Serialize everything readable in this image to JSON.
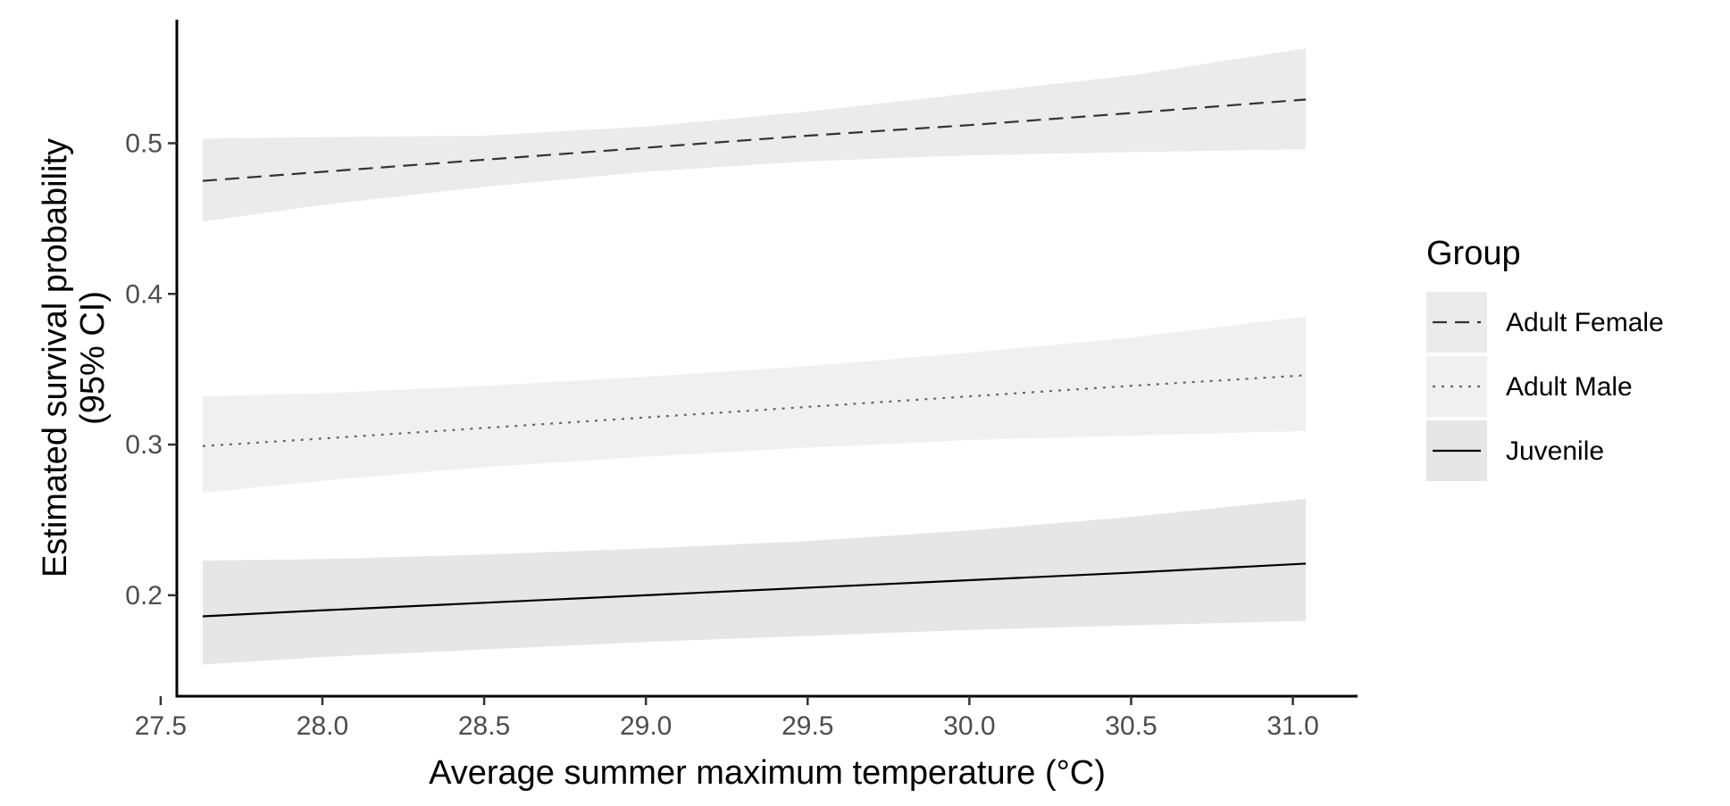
{
  "chart_data": {
    "type": "line",
    "title": "",
    "xlabel": "Average summer maximum temperature (°C)",
    "ylabel": [
      "Estimated survival probability",
      "(95% CI)"
    ],
    "xlim": [
      27.55,
      31.2
    ],
    "ylim": [
      0.133,
      0.582
    ],
    "x_ticks": [
      27.5,
      28.0,
      28.5,
      29.0,
      29.5,
      30.0,
      30.5,
      31.0
    ],
    "x_tick_labels": [
      "27.5",
      "28.0",
      "28.5",
      "29.0",
      "29.5",
      "30.0",
      "30.5",
      "31.0"
    ],
    "y_ticks": [
      0.2,
      0.3,
      0.4,
      0.5
    ],
    "y_tick_labels": [
      "0.2",
      "0.3",
      "0.4",
      "0.5"
    ],
    "grid": false,
    "legend_position": "right",
    "legend_title": "Group",
    "x": [
      27.63,
      28.0,
      28.5,
      29.0,
      29.5,
      30.0,
      30.5,
      31.04
    ],
    "series": [
      {
        "name": "Adult Female",
        "line_style": "dashed",
        "line_color": "#333333",
        "band_color": "#ebebeb",
        "values": [
          0.475,
          0.481,
          0.489,
          0.497,
          0.505,
          0.512,
          0.52,
          0.529
        ],
        "lower": [
          0.448,
          0.459,
          0.471,
          0.481,
          0.488,
          0.492,
          0.494,
          0.496
        ],
        "upper": [
          0.503,
          0.504,
          0.505,
          0.511,
          0.521,
          0.533,
          0.545,
          0.563
        ]
      },
      {
        "name": "Adult Male",
        "line_style": "dotted",
        "line_color": "#666666",
        "band_color": "#f0f0f0",
        "values": [
          0.299,
          0.304,
          0.311,
          0.318,
          0.325,
          0.332,
          0.339,
          0.346
        ],
        "lower": [
          0.268,
          0.276,
          0.285,
          0.292,
          0.298,
          0.303,
          0.306,
          0.309
        ],
        "upper": [
          0.332,
          0.334,
          0.339,
          0.345,
          0.352,
          0.361,
          0.371,
          0.385
        ]
      },
      {
        "name": "Juvenile",
        "line_style": "solid",
        "line_color": "#000000",
        "band_color": "#e6e6e6",
        "values": [
          0.186,
          0.19,
          0.195,
          0.2,
          0.205,
          0.21,
          0.215,
          0.221
        ],
        "lower": [
          0.154,
          0.159,
          0.164,
          0.169,
          0.173,
          0.177,
          0.18,
          0.183
        ],
        "upper": [
          0.223,
          0.224,
          0.227,
          0.231,
          0.236,
          0.243,
          0.252,
          0.264
        ]
      }
    ]
  }
}
